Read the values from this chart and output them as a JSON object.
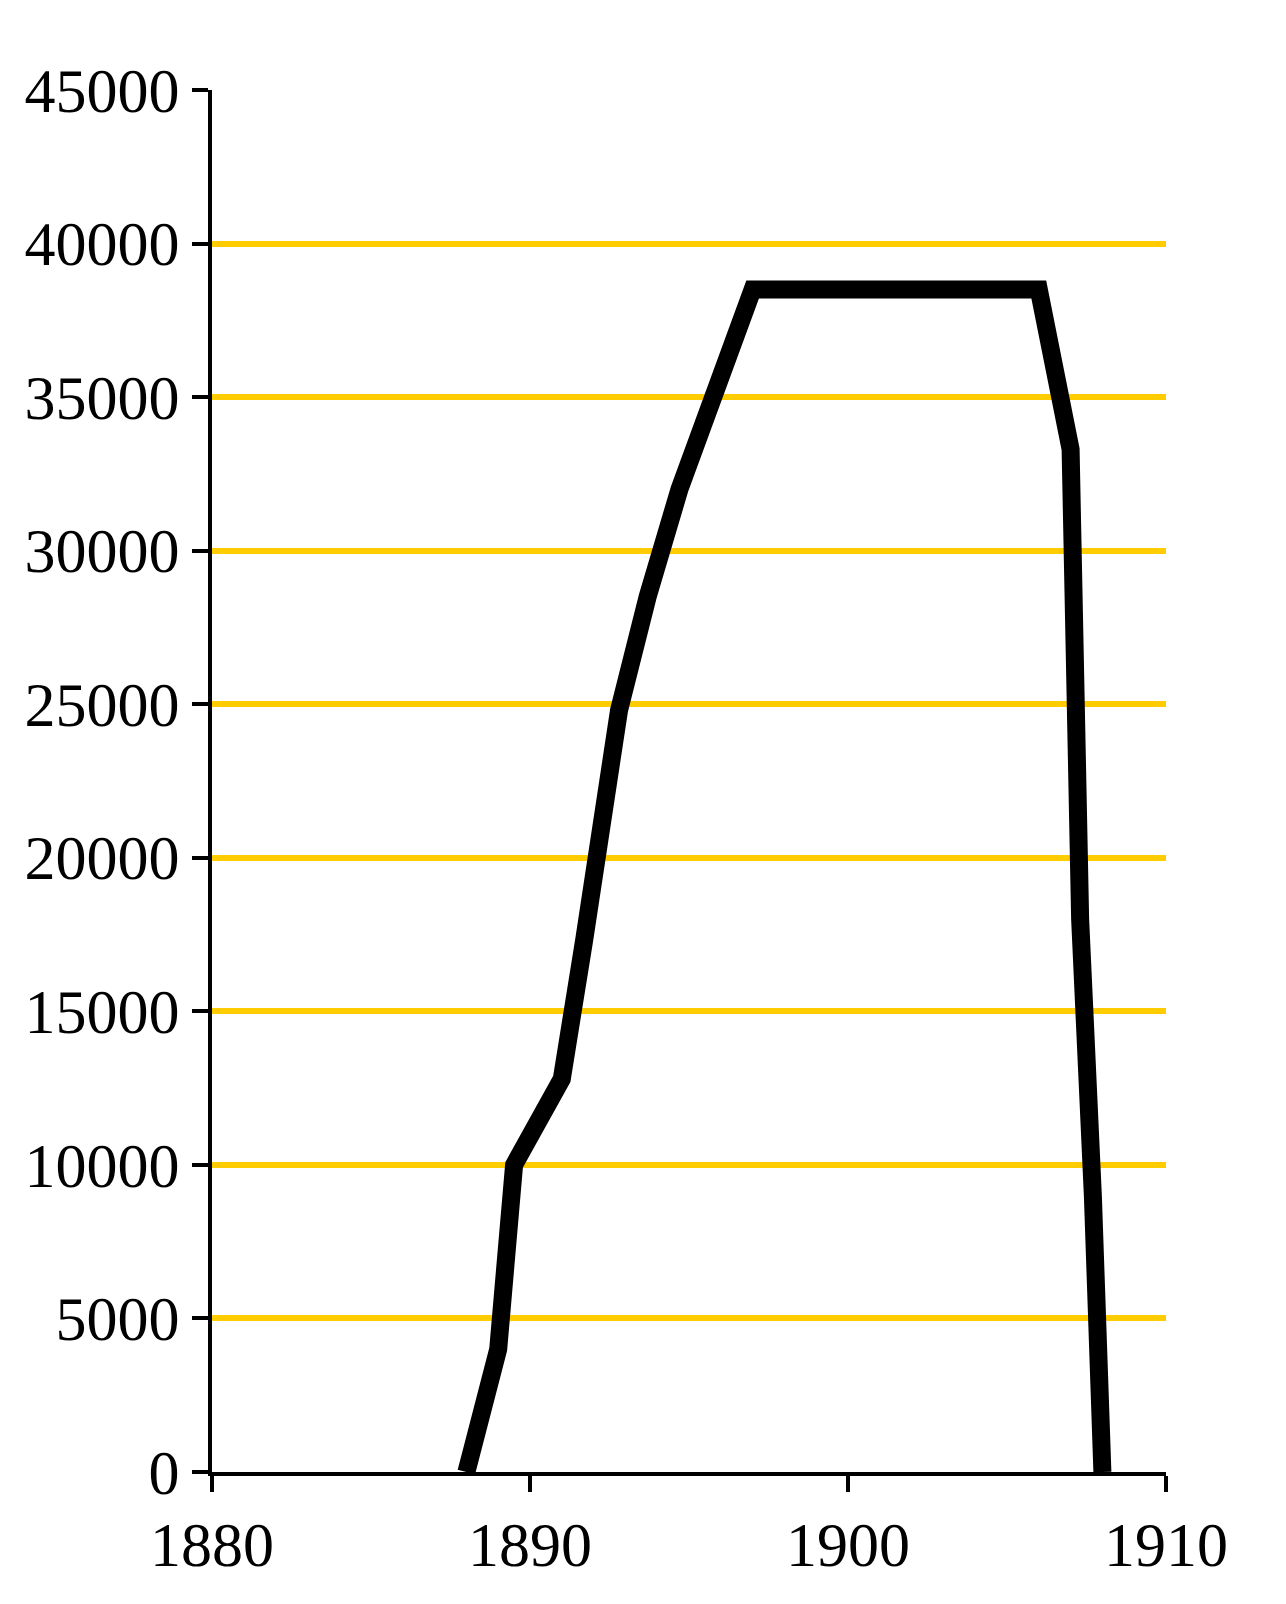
{
  "chart_data": {
    "type": "line",
    "x": [
      1888,
      1889,
      1889.5,
      1891,
      1891.7,
      1892.8,
      1893.7,
      1894.7,
      1897,
      1906,
      1907,
      1907.3,
      1907.7,
      1908
    ],
    "series": [
      {
        "color": "#000000",
        "values": [
          0,
          4000,
          10000,
          12800,
          17300,
          24800,
          28500,
          32000,
          38500,
          38500,
          33300,
          18000,
          9000,
          0
        ]
      }
    ],
    "xlim": [
      1880,
      1910
    ],
    "xticks": [
      1880,
      1890,
      1900,
      1910
    ],
    "ylim": [
      0,
      45000
    ],
    "yticks": [
      0,
      5000,
      10000,
      15000,
      20000,
      25000,
      30000,
      35000,
      40000,
      45000
    ],
    "grid": "y",
    "marker": "none",
    "line_style": "solid"
  }
}
